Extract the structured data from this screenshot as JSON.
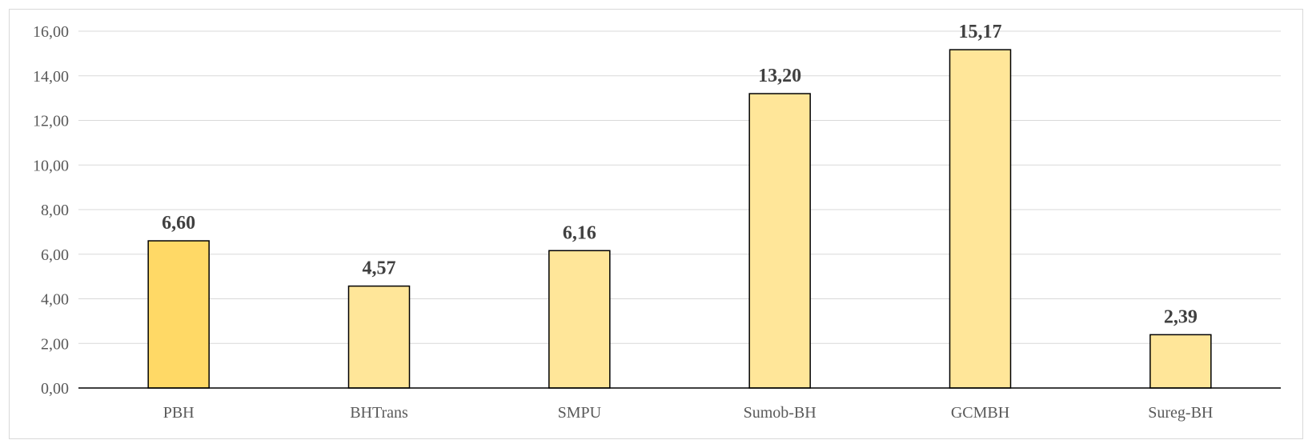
{
  "chart_data": {
    "type": "bar",
    "categories": [
      "PBH",
      "BHTrans",
      "SMPU",
      "Sumob-BH",
      "GCMBH",
      "Sureg-BH"
    ],
    "values": [
      6.6,
      4.57,
      6.16,
      13.2,
      15.17,
      2.39
    ],
    "value_labels": [
      "6,60",
      "4,57",
      "6,16",
      "13,20",
      "15,17",
      "2,39"
    ],
    "y_ticks": [
      "0,00",
      "2,00",
      "4,00",
      "6,00",
      "8,00",
      "10,00",
      "12,00",
      "14,00",
      "16,00"
    ],
    "ylim": [
      0,
      16
    ],
    "grid": true,
    "colors": {
      "highlight_bar": "#ffd966",
      "bar": "#ffe699",
      "bar_stroke": "#000000",
      "grid": "#d9d9d9",
      "axis": "#000000"
    },
    "highlight_index": 0
  }
}
